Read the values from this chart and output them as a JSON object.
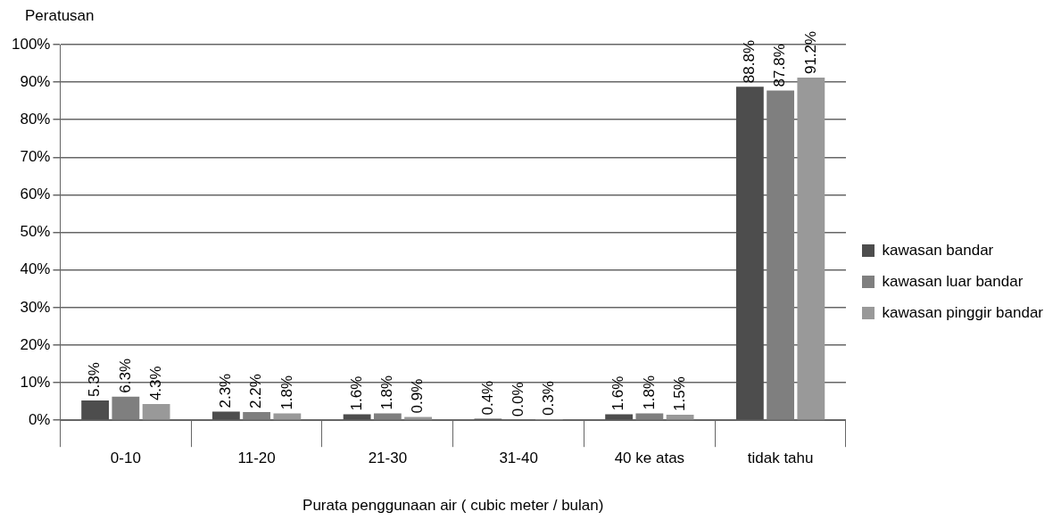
{
  "chart_data": {
    "type": "bar",
    "ylabel": "Peratusan",
    "xlabel": "Purata penggunaan air ( cubic meter / bulan)",
    "categories": [
      "0-10",
      "11-20",
      "21-30",
      "31-40",
      "40 ke atas",
      "tidak tahu"
    ],
    "series": [
      {
        "name": "kawasan bandar",
        "color": "#4d4d4d",
        "values": [
          5.3,
          2.3,
          1.6,
          0.4,
          1.6,
          88.8
        ],
        "value_labels": [
          "5.3%",
          "2.3%",
          "1.6%",
          "0.4%",
          "1.6%",
          "88.8%"
        ]
      },
      {
        "name": "kawasan luar bandar",
        "color": "#7f7f7f",
        "values": [
          6.3,
          2.2,
          1.8,
          0.0,
          1.8,
          87.8
        ],
        "value_labels": [
          "6.3%",
          "2.2%",
          "1.8%",
          "0.0%",
          "1.8%",
          "87.8%"
        ]
      },
      {
        "name": "kawasan pinggir bandar",
        "color": "#999999",
        "values": [
          4.3,
          1.8,
          0.9,
          0.3,
          1.5,
          91.2
        ],
        "value_labels": [
          "4.3%",
          "1.8%",
          "0.9%",
          "0.3%",
          "1.5%",
          "91.2%"
        ]
      }
    ],
    "ylim": [
      0,
      100
    ],
    "yticks": [
      {
        "value": 0,
        "label": "0%"
      },
      {
        "value": 10,
        "label": "10%"
      },
      {
        "value": 20,
        "label": "20%"
      },
      {
        "value": 30,
        "label": "30%"
      },
      {
        "value": 40,
        "label": "40%"
      },
      {
        "value": 50,
        "label": "50%"
      },
      {
        "value": 60,
        "label": "60%"
      },
      {
        "value": 70,
        "label": "70%"
      },
      {
        "value": 80,
        "label": "80%"
      },
      {
        "value": 90,
        "label": "90%"
      },
      {
        "value": 100,
        "label": "100%"
      }
    ],
    "grid": "y",
    "legend": "right"
  }
}
